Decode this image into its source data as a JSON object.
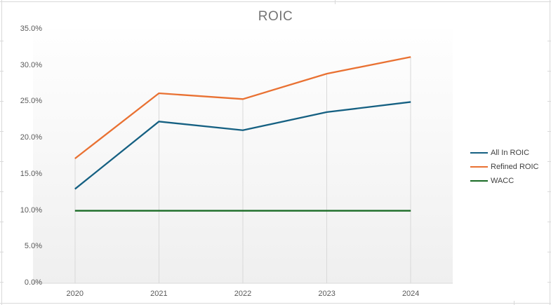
{
  "chart_data": {
    "type": "line",
    "title": "ROIC",
    "categories": [
      "2020",
      "2021",
      "2022",
      "2023",
      "2024"
    ],
    "series": [
      {
        "name": "All In ROIC",
        "color": "#156082",
        "values": [
          13.0,
          22.3,
          21.1,
          23.6,
          25.0
        ]
      },
      {
        "name": "Refined ROIC",
        "color": "#E97132",
        "values": [
          17.2,
          26.2,
          25.4,
          28.9,
          31.2
        ]
      },
      {
        "name": "WACC",
        "color": "#196B24",
        "values": [
          10.0,
          10.0,
          10.0,
          10.0,
          10.0
        ]
      }
    ],
    "xlabel": "",
    "ylabel": "",
    "ylim": [
      0,
      35
    ],
    "ytick_step": 5,
    "ytick_labels": [
      "0.0%",
      "5.0%",
      "10.0%",
      "15.0%",
      "20.0%",
      "25.0%",
      "30.0%",
      "35.0%"
    ],
    "legend_position": "right",
    "grid": "vertical-drop-lines-only"
  },
  "style": {
    "title_color": "#757575",
    "axis_label_color": "#595959",
    "legend_text_color": "#404040",
    "gridline_color": "#d9d9d9",
    "spreadsheet_edge_color": "#d9d9d9"
  }
}
